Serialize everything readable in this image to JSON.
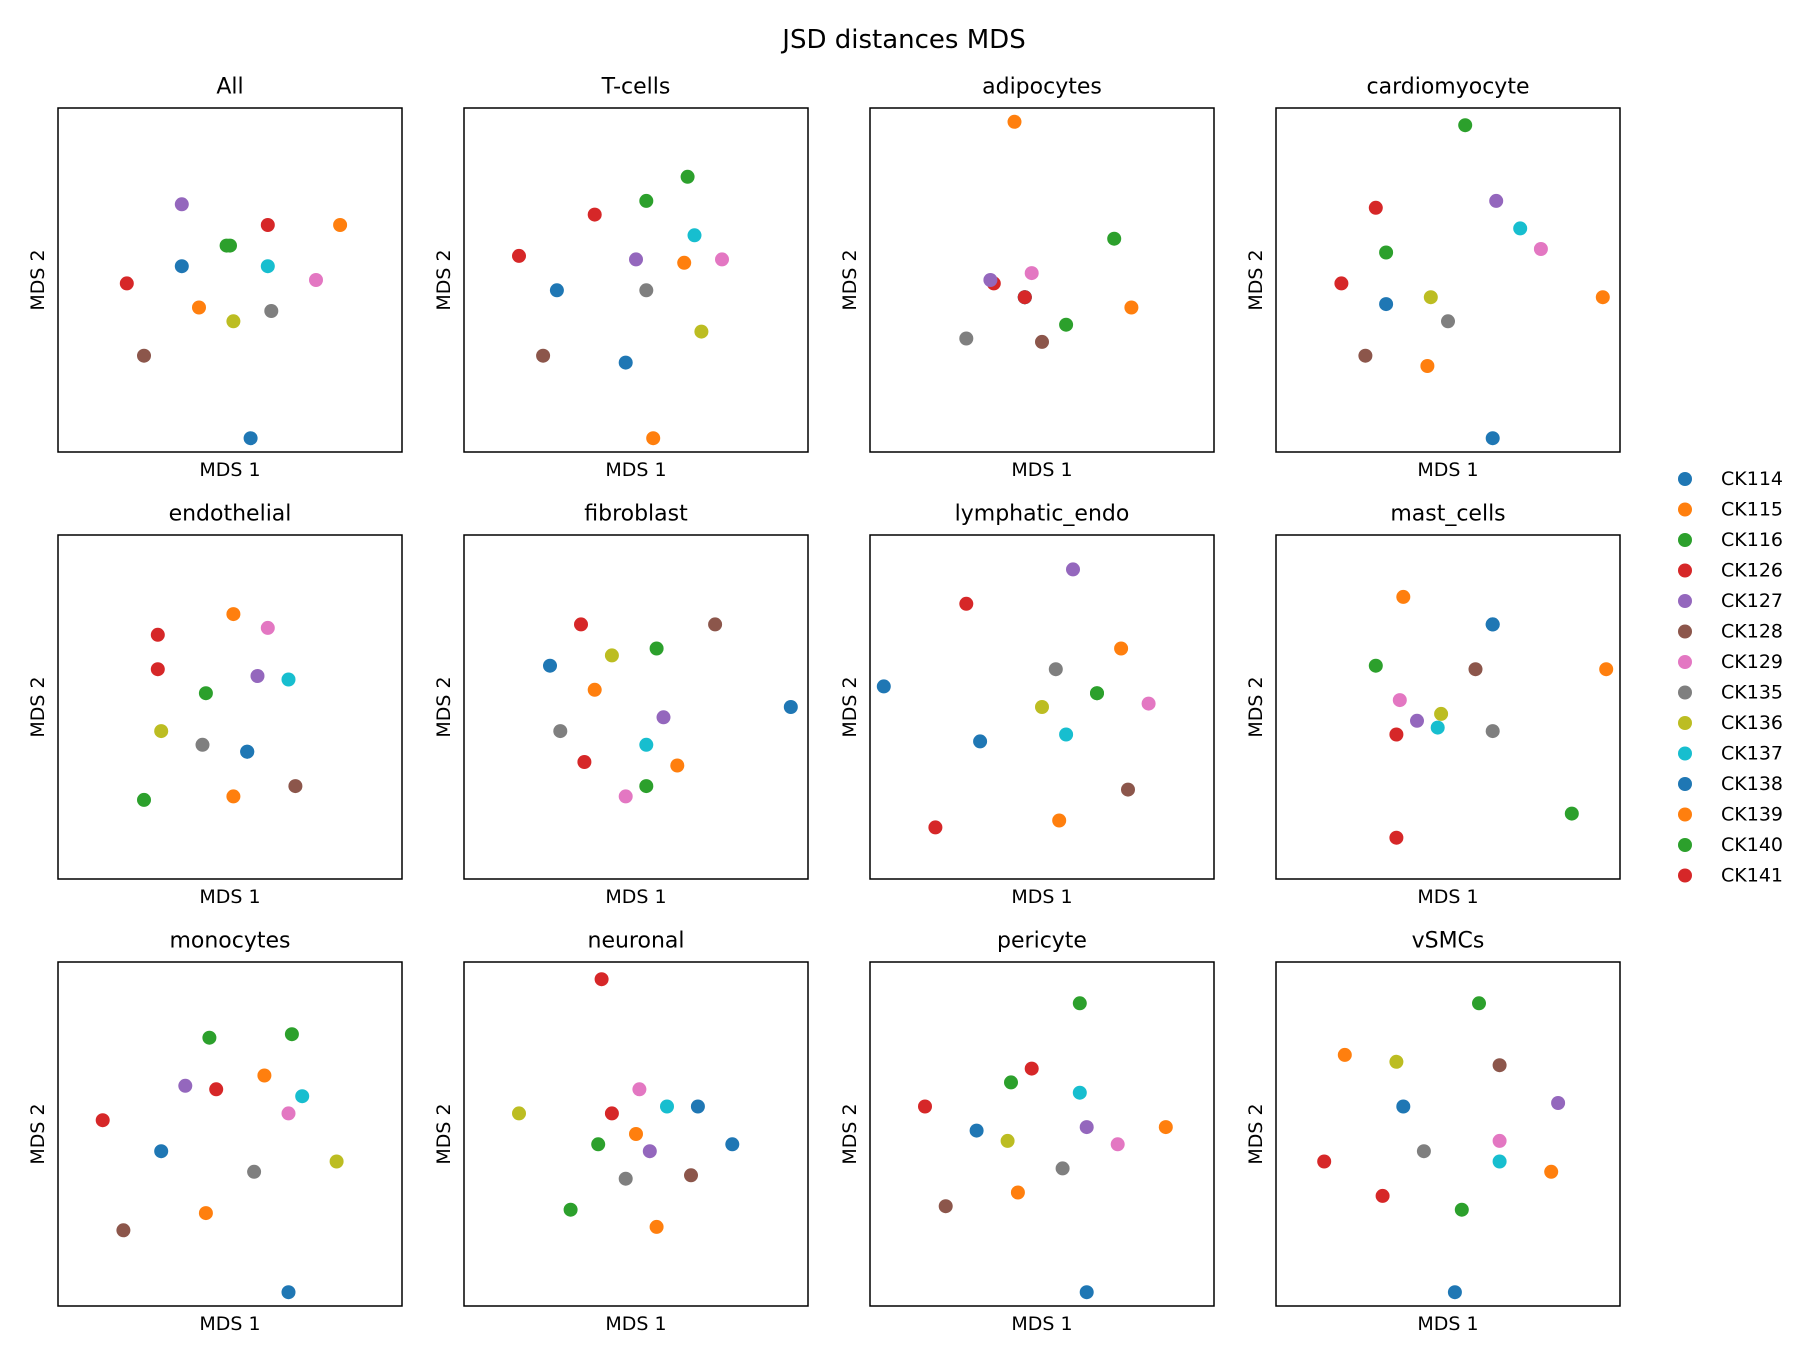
{
  "chart_data": {
    "type": "scatter",
    "title": "JSD distances MDS",
    "xlabel": "MDS 1",
    "ylabel": "MDS 2",
    "xlim": [
      0,
      100
    ],
    "ylim": [
      0,
      100
    ],
    "ticks_shown": false,
    "legend_position": "right",
    "legend": [
      {
        "name": "CK114",
        "color": "#1f77b4"
      },
      {
        "name": "CK115",
        "color": "#ff7f0e"
      },
      {
        "name": "CK116",
        "color": "#2ca02c"
      },
      {
        "name": "CK126",
        "color": "#d62728"
      },
      {
        "name": "CK127",
        "color": "#9467bd"
      },
      {
        "name": "CK128",
        "color": "#8c564b"
      },
      {
        "name": "CK129",
        "color": "#e377c2"
      },
      {
        "name": "CK135",
        "color": "#7f7f7f"
      },
      {
        "name": "CK136",
        "color": "#bcbd22"
      },
      {
        "name": "CK137",
        "color": "#17becf"
      },
      {
        "name": "CK138",
        "color": "#1f77b4"
      },
      {
        "name": "CK139",
        "color": "#ff7f0e"
      },
      {
        "name": "CK140",
        "color": "#2ca02c"
      },
      {
        "name": "CK141",
        "color": "#d62728"
      }
    ],
    "panels": [
      {
        "title": "All",
        "points": [
          [
            56,
            4
          ],
          [
            41,
            42
          ],
          [
            50,
            60
          ],
          [
            61,
            66
          ],
          [
            36,
            72
          ],
          [
            25,
            28
          ],
          [
            75,
            50
          ],
          [
            62,
            41
          ],
          [
            51,
            38
          ],
          [
            61,
            54
          ],
          [
            36,
            54
          ],
          [
            82,
            66
          ],
          [
            49,
            60
          ],
          [
            20,
            49
          ]
        ]
      },
      {
        "title": "T-cells",
        "points": [
          [
            47,
            26
          ],
          [
            55,
            4
          ],
          [
            53,
            73
          ],
          [
            38,
            69
          ],
          [
            50,
            56
          ],
          [
            23,
            28
          ],
          [
            75,
            56
          ],
          [
            53,
            47
          ],
          [
            69,
            35
          ],
          [
            67,
            63
          ],
          [
            27,
            47
          ],
          [
            64,
            55
          ],
          [
            65,
            80
          ],
          [
            16,
            57
          ]
        ]
      },
      {
        "title": "adipocytes",
        "points": [
          [
            45,
            45
          ],
          [
            42,
            96
          ],
          [
            57,
            37
          ],
          [
            36,
            49
          ],
          [
            35,
            50
          ],
          [
            50,
            32
          ],
          [
            47,
            52
          ],
          [
            28,
            33
          ],
          [
            45,
            45
          ],
          [
            45,
            45
          ],
          [
            45,
            45
          ],
          [
            76,
            42
          ],
          [
            71,
            62
          ],
          [
            45,
            45
          ]
        ]
      },
      {
        "title": "cardiomyocyte",
        "points": [
          [
            63,
            4
          ],
          [
            44,
            25
          ],
          [
            55,
            95
          ],
          [
            29,
            71
          ],
          [
            64,
            73
          ],
          [
            26,
            28
          ],
          [
            77,
            59
          ],
          [
            50,
            38
          ],
          [
            45,
            45
          ],
          [
            71,
            65
          ],
          [
            32,
            43
          ],
          [
            95,
            45
          ],
          [
            32,
            58
          ],
          [
            19,
            49
          ]
        ]
      },
      {
        "title": "endothelial",
        "points": [
          [
            55,
            37
          ],
          [
            51,
            24
          ],
          [
            43,
            54
          ],
          [
            29,
            71
          ],
          [
            58,
            59
          ],
          [
            69,
            27
          ],
          [
            61,
            73
          ],
          [
            42,
            39
          ],
          [
            30,
            43
          ],
          [
            67,
            58
          ],
          [
            55,
            37
          ],
          [
            51,
            77
          ],
          [
            25,
            23
          ],
          [
            29,
            61
          ]
        ]
      },
      {
        "title": "fibroblast",
        "points": [
          [
            95,
            50
          ],
          [
            62,
            33
          ],
          [
            53,
            27
          ],
          [
            34,
            74
          ],
          [
            58,
            47
          ],
          [
            73,
            74
          ],
          [
            47,
            24
          ],
          [
            28,
            43
          ],
          [
            43,
            65
          ],
          [
            53,
            39
          ],
          [
            25,
            62
          ],
          [
            38,
            55
          ],
          [
            56,
            67
          ],
          [
            35,
            34
          ]
        ]
      },
      {
        "title": "lymphatic_endo",
        "points": [
          [
            32,
            40
          ],
          [
            55,
            17
          ],
          [
            66,
            54
          ],
          [
            28,
            80
          ],
          [
            59,
            90
          ],
          [
            75,
            26
          ],
          [
            81,
            51
          ],
          [
            54,
            61
          ],
          [
            50,
            50
          ],
          [
            57,
            42
          ],
          [
            4,
            56
          ],
          [
            73,
            67
          ],
          [
            66,
            54
          ],
          [
            19,
            15
          ]
        ]
      },
      {
        "title": "mast_cells",
        "points": [
          [
            63,
            74
          ],
          [
            37,
            82
          ],
          [
            86,
            19
          ],
          [
            35,
            42
          ],
          [
            41,
            46
          ],
          [
            58,
            61
          ],
          [
            36,
            52
          ],
          [
            63,
            43
          ],
          [
            48,
            48
          ],
          [
            47,
            44
          ],
          [
            63,
            74
          ],
          [
            96,
            61
          ],
          [
            29,
            62
          ],
          [
            35,
            12
          ]
        ]
      },
      {
        "title": "monocytes",
        "points": [
          [
            67,
            4
          ],
          [
            43,
            27
          ],
          [
            44,
            78
          ],
          [
            46,
            63
          ],
          [
            37,
            64
          ],
          [
            19,
            22
          ],
          [
            67,
            56
          ],
          [
            57,
            39
          ],
          [
            81,
            42
          ],
          [
            71,
            61
          ],
          [
            30,
            45
          ],
          [
            60,
            67
          ],
          [
            68,
            79
          ],
          [
            13,
            54
          ]
        ]
      },
      {
        "title": "neuronal",
        "points": [
          [
            68,
            58
          ],
          [
            56,
            23
          ],
          [
            39,
            47
          ],
          [
            43,
            56
          ],
          [
            54,
            45
          ],
          [
            66,
            38
          ],
          [
            51,
            63
          ],
          [
            47,
            37
          ],
          [
            16,
            56
          ],
          [
            59,
            58
          ],
          [
            78,
            47
          ],
          [
            50,
            50
          ],
          [
            31,
            28
          ],
          [
            40,
            95
          ]
        ]
      },
      {
        "title": "pericyte",
        "points": [
          [
            63,
            4
          ],
          [
            43,
            33
          ],
          [
            61,
            88
          ],
          [
            47,
            69
          ],
          [
            63,
            52
          ],
          [
            22,
            29
          ],
          [
            72,
            47
          ],
          [
            56,
            40
          ],
          [
            40,
            48
          ],
          [
            61,
            62
          ],
          [
            31,
            51
          ],
          [
            86,
            52
          ],
          [
            41,
            65
          ],
          [
            16,
            58
          ]
        ]
      },
      {
        "title": "vSMCs",
        "points": [
          [
            52,
            4
          ],
          [
            80,
            39
          ],
          [
            59,
            88
          ],
          [
            31,
            32
          ],
          [
            82,
            59
          ],
          [
            65,
            70
          ],
          [
            65,
            48
          ],
          [
            43,
            45
          ],
          [
            35,
            71
          ],
          [
            65,
            42
          ],
          [
            37,
            58
          ],
          [
            20,
            73
          ],
          [
            54,
            28
          ],
          [
            14,
            42
          ]
        ]
      }
    ]
  }
}
